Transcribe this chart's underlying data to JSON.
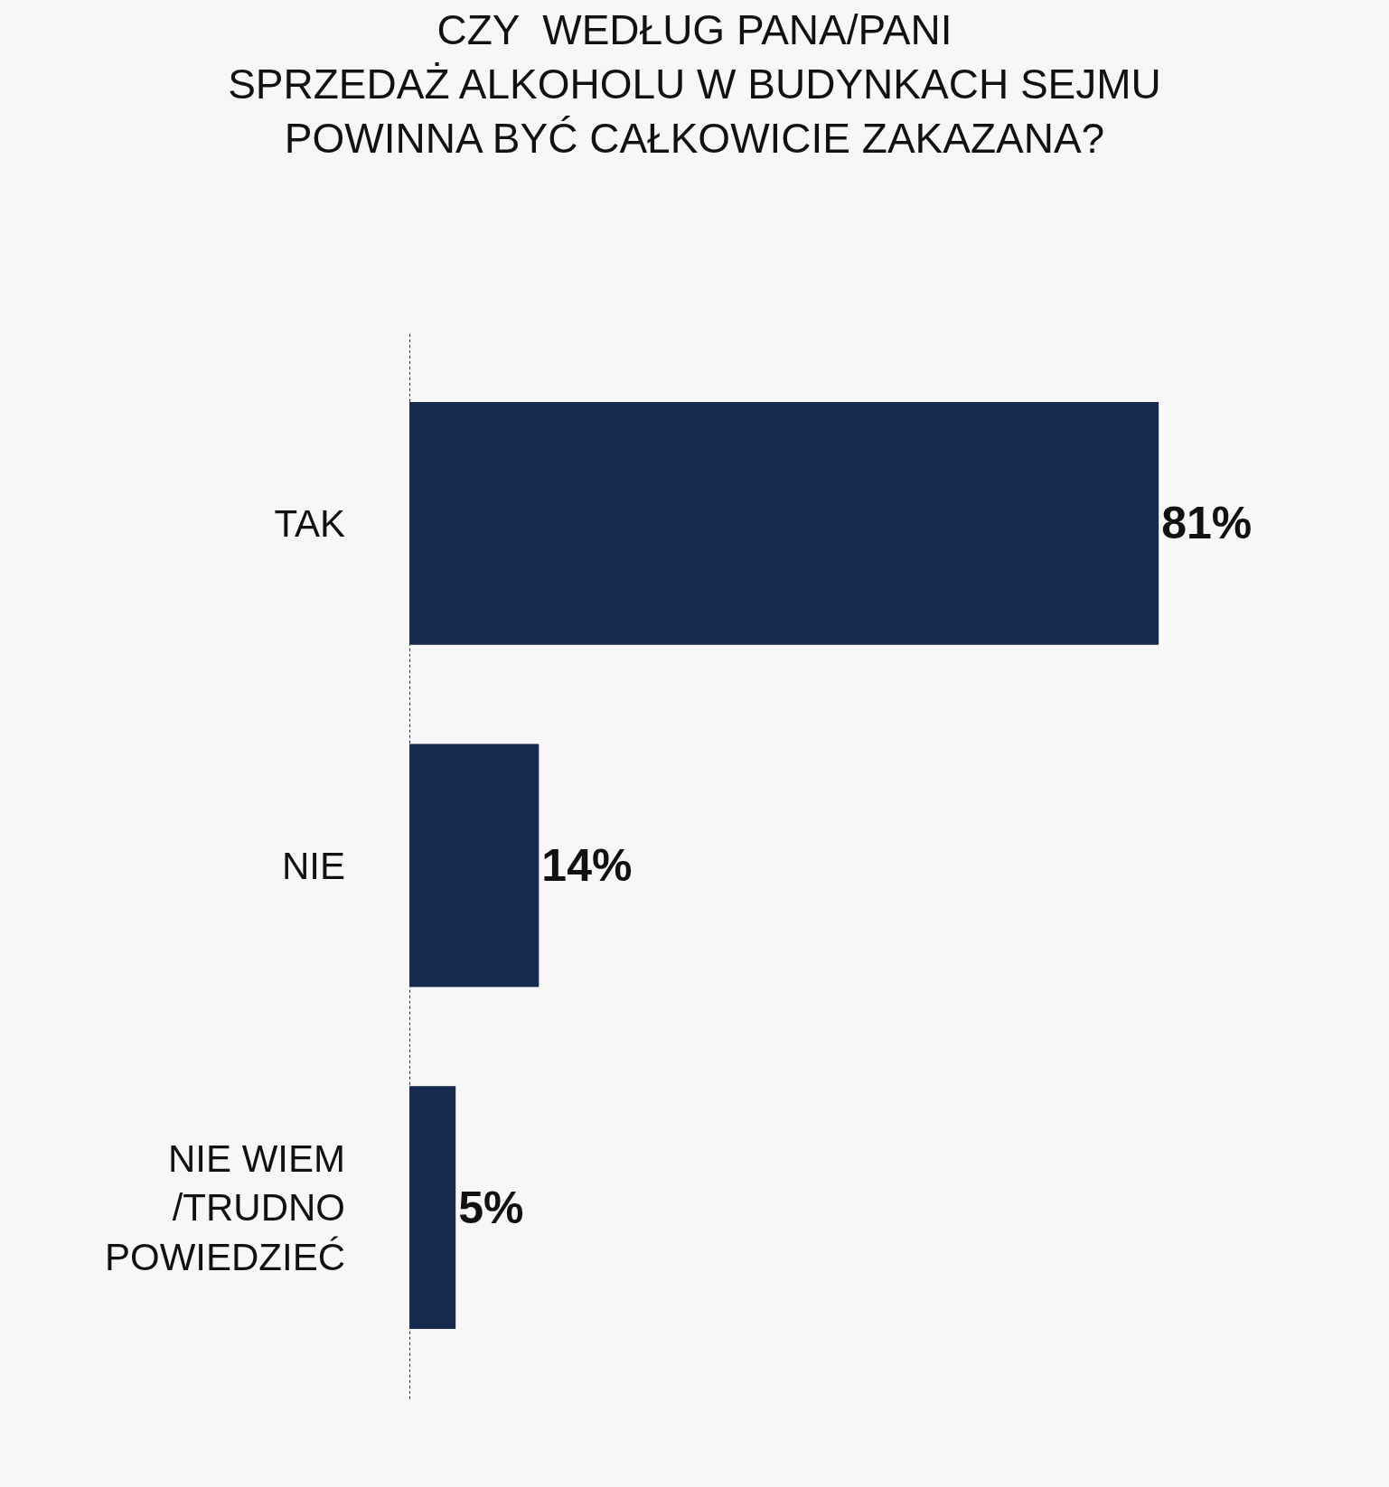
{
  "chart_data": {
    "type": "bar",
    "orientation": "horizontal",
    "title": "CZY  WEDŁUG PANA/PANI\nSPRZEDAŻ ALKOHOLU W BUDYNKACH SEJMU\nPOWINNA BYĆ CAŁKOWICIE ZAKAZANA?",
    "categories": [
      "TAK",
      "NIE",
      "NIE WIEM\n/TRUDNO\nPOWIEDZIEĆ"
    ],
    "values": [
      81,
      14,
      5
    ],
    "value_labels": [
      "81%",
      "14%",
      "5%"
    ],
    "color": "#172a4f",
    "grid": false,
    "legend": false
  }
}
